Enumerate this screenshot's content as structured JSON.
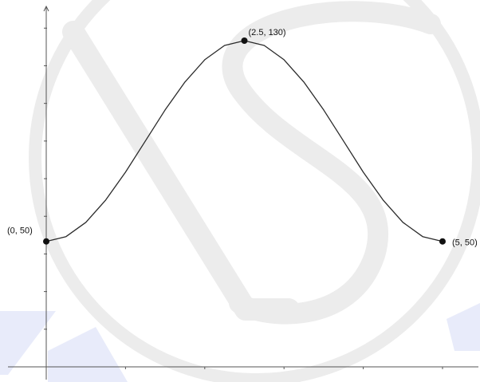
{
  "chart_data": {
    "type": "line",
    "title": "",
    "xlabel": "",
    "ylabel": "",
    "xlim": [
      0,
      5
    ],
    "ylim": [
      0,
      130
    ],
    "grid": false,
    "series": [
      {
        "x": [
          0,
          0.25,
          0.5,
          0.75,
          1.0,
          1.25,
          1.5,
          1.75,
          2.0,
          2.25,
          2.5,
          2.75,
          3.0,
          3.25,
          3.5,
          3.75,
          4.0,
          4.25,
          4.5,
          4.75,
          5.0
        ],
        "y": [
          50,
          51.9,
          57.6,
          66.5,
          77.6,
          90,
          102.4,
          113.5,
          122.4,
          128.1,
          130,
          128.1,
          122.4,
          113.5,
          102.4,
          90,
          77.6,
          66.5,
          57.6,
          51.9,
          50
        ]
      }
    ],
    "points": [
      {
        "x": 0,
        "y": 50,
        "label": "(0, 50)"
      },
      {
        "x": 2.5,
        "y": 130,
        "label": "(2.5, 130)"
      },
      {
        "x": 5,
        "y": 50,
        "label": "(5, 50)"
      }
    ],
    "colors": {
      "curve": "#2a2a2a",
      "axis": "#555555",
      "point": "#111111",
      "watermark": "#ececec",
      "watermark_accent": "#e8ebfa"
    },
    "watermark": "logo"
  }
}
